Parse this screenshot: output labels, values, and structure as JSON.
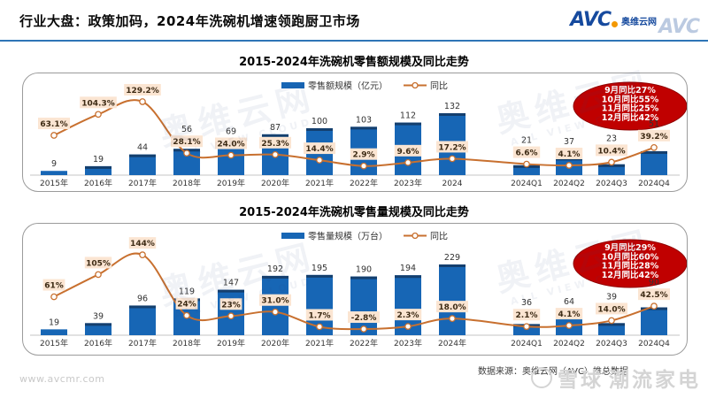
{
  "header": {
    "title": "行业大盘：政策加码，2024年洗碗机增速领跑厨卫市场",
    "logo_text": "AVC",
    "logo_cn": "奥维云网"
  },
  "colors": {
    "bar": "#1766B5",
    "bar_cap": "#143F6E",
    "line": "#C8702F",
    "pct_bg": "#FBE5D2",
    "pct_text": "#3d2b15",
    "annotation_red": "#C00000",
    "accent": "#2E75B6"
  },
  "chart_data": [
    {
      "type": "bar+line",
      "title": "2015-2024年洗碗机零售额规模及同比走势",
      "categories": [
        "2015年",
        "2016年",
        "2017年",
        "2018年",
        "2019年",
        "2020年",
        "2021年",
        "2022年",
        "2023年",
        "2024",
        "2024Q1",
        "2024Q2",
        "2024Q3",
        "2024Q4"
      ],
      "series": [
        {
          "name": "零售额规模（亿元）",
          "type": "bar",
          "unit": "亿元",
          "values": [
            9,
            19,
            44,
            56,
            69,
            87,
            100,
            103,
            112,
            132,
            21,
            37,
            23,
            51
          ]
        },
        {
          "name": "同比",
          "type": "line",
          "unit": "%",
          "values": [
            63.1,
            104.3,
            129.2,
            28.1,
            24.0,
            25.3,
            14.4,
            2.9,
            9.6,
            17.2,
            6.6,
            4.1,
            10.4,
            39.2
          ],
          "labels": [
            "63.1%",
            "104.3%",
            "129.2%",
            "28.1%",
            "24.0%",
            "25.3%",
            "14.4%",
            "2.9%",
            "9.6%",
            "17.2%",
            "6.6%",
            "4.1%",
            "10.4%",
            "39.2%"
          ]
        }
      ],
      "legend_position": "top",
      "grid": false,
      "annotation": {
        "lines": [
          "9月同比27%",
          "10月同比55%",
          "11月同比25%",
          "12月同比42%"
        ],
        "color": "#C00000"
      }
    },
    {
      "type": "bar+line",
      "title": "2015-2024年洗碗机零售量规模及同比走势",
      "categories": [
        "2015年",
        "2016年",
        "2017年",
        "2018年",
        "2019年",
        "2020年",
        "2021年",
        "2022年",
        "2023年",
        "2024年",
        "2024Q1",
        "2024Q2",
        "2024Q3",
        "2024Q4"
      ],
      "series": [
        {
          "name": "零售量规模（万台）",
          "type": "bar",
          "unit": "万台",
          "values": [
            19,
            39,
            96,
            119,
            147,
            192,
            195,
            190,
            194,
            229,
            36,
            64,
            39,
            90
          ]
        },
        {
          "name": "同比",
          "type": "line",
          "unit": "%",
          "values": [
            61,
            105,
            144,
            24,
            23,
            31.0,
            1.7,
            -2.8,
            2.3,
            18.0,
            2.1,
            4.1,
            14.0,
            42.5
          ],
          "labels": [
            "61%",
            "105%",
            "144%",
            "24%",
            "23%",
            "31.0%",
            "1.7%",
            "-2.8%",
            "2.3%",
            "18.0%",
            "2.1%",
            "4.1%",
            "14.0%",
            "42.5%"
          ]
        }
      ],
      "legend_position": "top",
      "grid": false,
      "annotation": {
        "lines": [
          "9月同比29%",
          "10月同比60%",
          "11月同比28%",
          "12月同比42%"
        ],
        "color": "#C00000"
      }
    }
  ],
  "watermarks": {
    "cn": "奥维云网",
    "en": "ALL VIEW CLOUD"
  },
  "footer": {
    "url": "www.avcmr.com",
    "source": "数据来源：奥维云网（AVC）推总数据",
    "wm_brand": "雪球",
    "wm_suffix": "潮流家电"
  }
}
